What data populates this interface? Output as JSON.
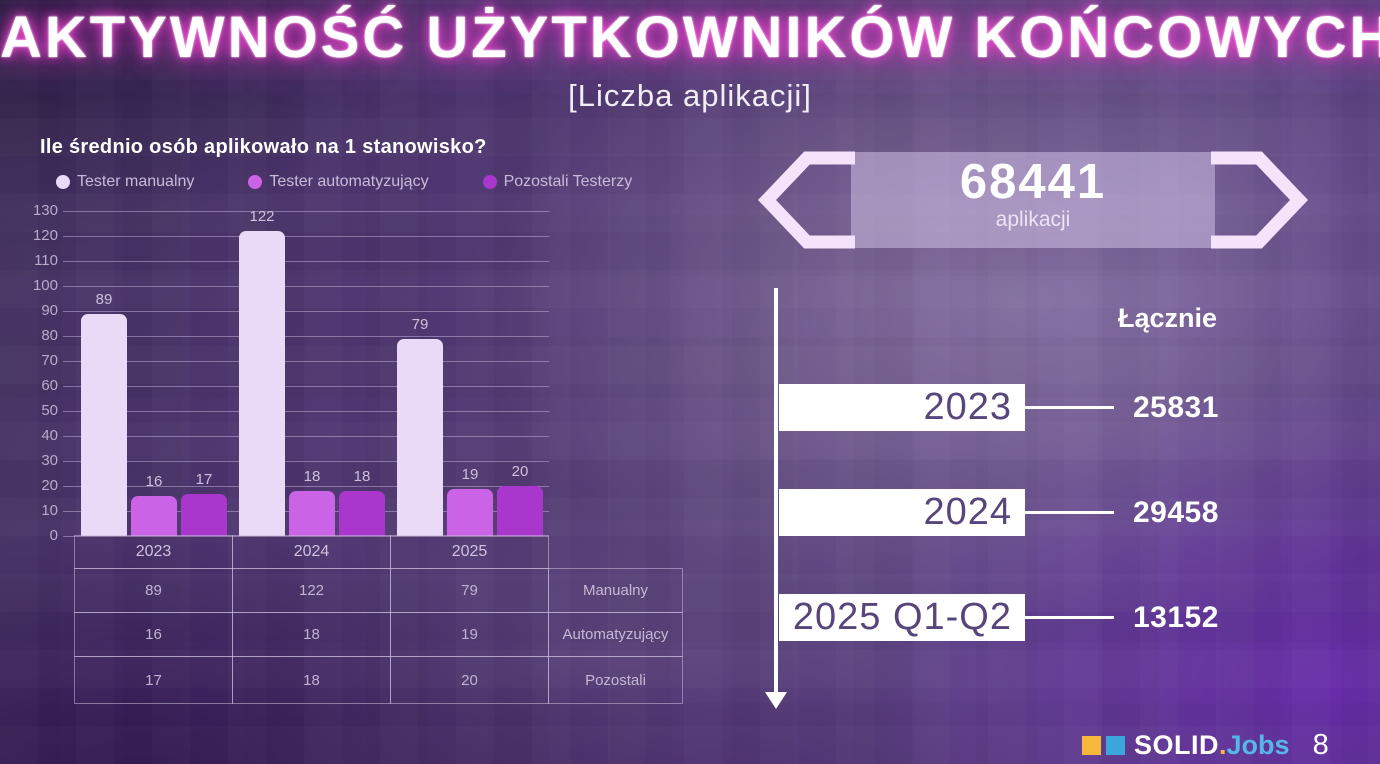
{
  "slide": {
    "title": "AKTYWNOŚĆ UŻYTKOWNIKÓW KOŃCOWYCH",
    "subtitle": "[Liczba aplikacji]"
  },
  "chart_data": {
    "type": "bar",
    "title": "Ile średnio osób aplikowało na 1 stanowisko?",
    "categories": [
      "2023",
      "2024",
      "2025"
    ],
    "series": [
      {
        "name": "Tester manualny",
        "color": "#ead9f7",
        "values": [
          89,
          122,
          79
        ]
      },
      {
        "name": "Tester automatyzujący",
        "color": "#cb63e6",
        "values": [
          16,
          18,
          19
        ]
      },
      {
        "name": "Pozostali Testerzy",
        "color": "#a936cd",
        "values": [
          17,
          18,
          20
        ]
      }
    ],
    "ylim": [
      0,
      130
    ],
    "ytick_step": 10,
    "grid": true,
    "legend_position": "top",
    "xlabel": "",
    "ylabel": ""
  },
  "table": {
    "header": [
      "2023",
      "2024",
      "2025"
    ],
    "rows": [
      {
        "cells": [
          "89",
          "122",
          "79"
        ],
        "label": "Manualny"
      },
      {
        "cells": [
          "16",
          "18",
          "19"
        ],
        "label": "Automatyzujący"
      },
      {
        "cells": [
          "17",
          "18",
          "20"
        ],
        "label": "Pozostali"
      }
    ]
  },
  "badge": {
    "value": "68441",
    "unit": "aplikacji"
  },
  "timeline": {
    "header": "Łącznie",
    "items": [
      {
        "label": "2023",
        "value": "25831"
      },
      {
        "label": "2024",
        "value": "29458"
      },
      {
        "label": "2025 Q1-Q2",
        "value": "13152"
      }
    ]
  },
  "footer": {
    "brand_main": "SOLID",
    "brand_dot": ".",
    "brand_accent": "Jobs",
    "page_number": "8"
  },
  "colors": {
    "title_glow": "#ff54dd",
    "bar_manual": "#ead9f7",
    "bar_auto": "#cb63e6",
    "bar_other": "#a936cd",
    "brand_yellow": "#f6b73c",
    "brand_blue": "#3aa8dc",
    "brand_lightblue": "#54b7e8",
    "timeline_year_text": "#57467c"
  }
}
